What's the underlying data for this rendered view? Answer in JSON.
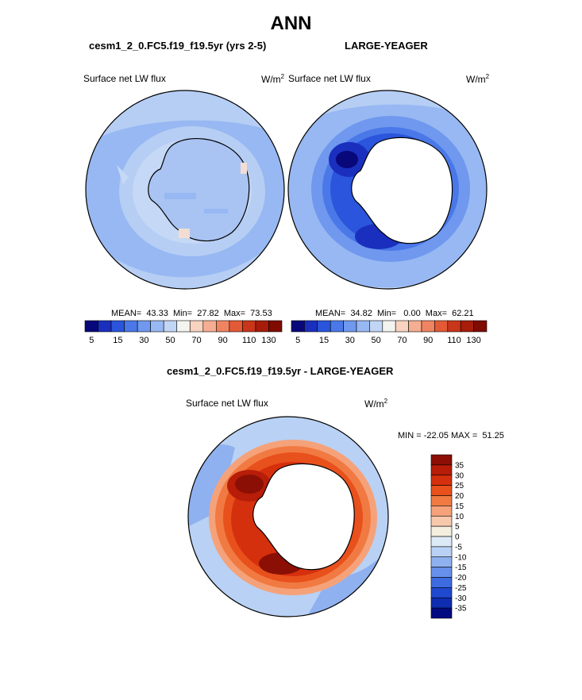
{
  "title": "ANN",
  "panel1": {
    "case_title": "cesm1_2_0.FC5.f19_f19.5yr (yrs 2-5)",
    "variable": "Surface net LW flux",
    "units_base": "W/m",
    "units_exp": "2",
    "stats": "MEAN=  43.33  Min=  27.82  Max=  73.53"
  },
  "panel2": {
    "case_title": "LARGE-YEAGER",
    "variable": "Surface net LW flux",
    "units_base": "W/m",
    "units_exp": "2",
    "stats": "MEAN=  34.82  Min=   0.00  Max=  62.21"
  },
  "panel3": {
    "case_title": "cesm1_2_0.FC5.f19_f19.5yr - LARGE-YEAGER",
    "variable": "Surface net LW flux",
    "units_base": "W/m",
    "units_exp": "2",
    "stats": "MIN = -22.05 MAX =  51.25"
  },
  "colorbar_h": {
    "colors": [
      "#08087a",
      "#1a2fbe",
      "#2a55dc",
      "#4a78e8",
      "#6f98ee",
      "#97b8f2",
      "#c1d5f5",
      "#f3f3f0",
      "#f7d3c0",
      "#f5ae92",
      "#ef8462",
      "#e35a36",
      "#c9361a",
      "#a81c0a",
      "#800b00"
    ],
    "tick_labels": [
      "5",
      "15",
      "30",
      "50",
      "70",
      "90",
      "110",
      "130"
    ]
  },
  "colorbar_v": {
    "colors": [
      "#8b0f05",
      "#b71d08",
      "#d5300e",
      "#e8501c",
      "#f17a42",
      "#f5a27a",
      "#f8c8ad",
      "#f4eedf",
      "#dce9f6",
      "#b9d1f4",
      "#8fb1f0",
      "#6690ea",
      "#3e6be0",
      "#1f49cf",
      "#0f2db0",
      "#040a80"
    ],
    "tick_labels": [
      "35",
      "30",
      "25",
      "20",
      "15",
      "10",
      "5",
      "0",
      "-5",
      "-10",
      "-15",
      "-20",
      "-25",
      "-30",
      "-35"
    ]
  }
}
